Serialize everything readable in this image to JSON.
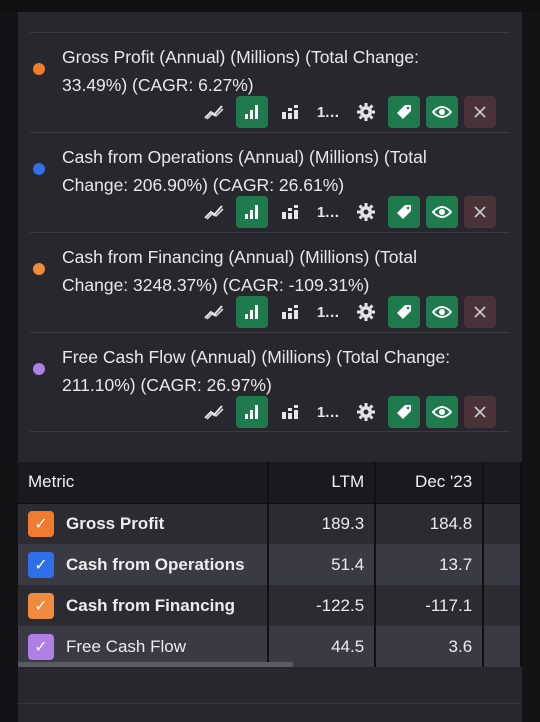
{
  "series": [
    {
      "title": "Gross Profit (Annual) (Millions) (Total Change: 33.49%) (CAGR: 6.27%)",
      "color": "#f07a2e"
    },
    {
      "title": "Cash from Operations (Annual) (Millions) (Total Change: 206.90%) (CAGR: 26.61%)",
      "color": "#2f6fe8"
    },
    {
      "title": "Cash from Financing (Annual) (Millions) (Total Change: 3248.37%) (CAGR: -109.31%)",
      "color": "#f08a3e"
    },
    {
      "title": "Free Cash Flow (Annual) (Millions) (Total Change: 211.10%) (CAGR: 26.97%)",
      "color": "#b07fe6"
    }
  ],
  "action_icons": [
    "trend-line-icon",
    "bar-chart-icon",
    "stacked-bar-icon",
    "sort-icon",
    "gear-icon",
    "tag-icon",
    "eye-icon",
    "close-icon"
  ],
  "sort_label": "1…",
  "table": {
    "headers": {
      "metric": "Metric",
      "ltm": "LTM",
      "dec23": "Dec '23"
    },
    "rows": [
      {
        "metric": "Gross Profit",
        "ltm": "189.3",
        "dec23": "184.8",
        "color": "#f07a2e",
        "checked": true
      },
      {
        "metric": "Cash from Operations",
        "ltm": "51.4",
        "dec23": "13.7",
        "color": "#2f6fe8",
        "checked": true
      },
      {
        "metric": "Cash from Financing",
        "ltm": "-122.5",
        "dec23": "-117.1",
        "color": "#f08a3e",
        "checked": true
      },
      {
        "metric": "Free Cash Flow",
        "ltm": "44.5",
        "dec23": "3.6",
        "color": "#b07fe6",
        "checked": true
      }
    ]
  }
}
